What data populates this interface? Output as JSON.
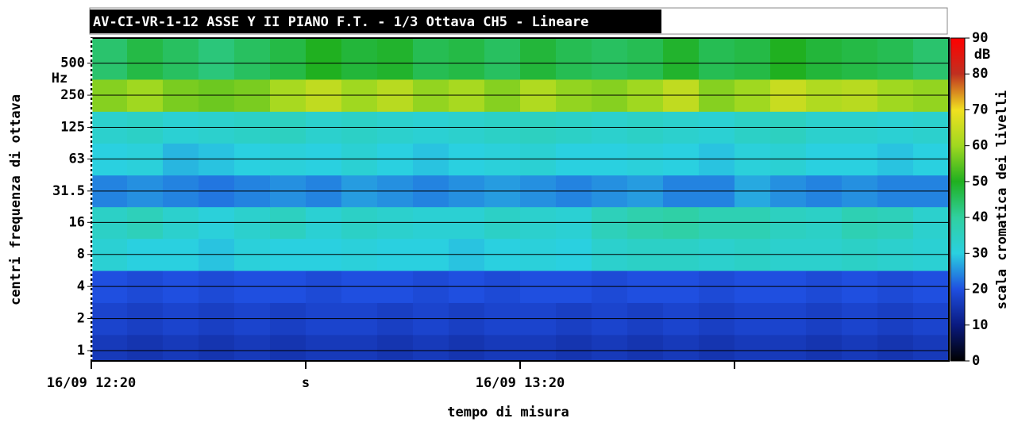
{
  "chart_data": {
    "type": "heatmap",
    "title": "AV-CI-VR-1-12 ASSE Y II PIANO F.T. - 1/3 Ottava CH5 - Lineare",
    "x_label": "tempo di misura",
    "y_label": "centri frequenza di ottava",
    "y_unit": "Hz",
    "colorbar_label": "scala cromatica dei livelli",
    "z_unit": "dB",
    "x": [
      "16/09 12:20",
      null,
      null,
      null,
      null,
      null,
      "s",
      null,
      null,
      null,
      null,
      null,
      "16/09 13:20",
      null,
      null,
      null,
      null,
      null,
      null,
      null,
      null,
      null,
      null,
      null
    ],
    "ylim": [
      0.8,
      860
    ],
    "yticks": [
      1,
      2,
      4,
      8,
      16,
      31.5,
      63,
      125,
      250,
      500
    ],
    "log_y": true,
    "grid": true,
    "zlim": [
      0,
      90
    ],
    "zticks": [
      0,
      10,
      20,
      30,
      40,
      50,
      60,
      70,
      80,
      90
    ],
    "colorscale": [
      [
        0,
        "#000000"
      ],
      [
        10,
        "#0a1a80"
      ],
      [
        20,
        "#1f4fe0"
      ],
      [
        30,
        "#2ad0e0"
      ],
      [
        40,
        "#30d0a0"
      ],
      [
        50,
        "#20b020"
      ],
      [
        60,
        "#a0d820"
      ],
      [
        70,
        "#f0e020"
      ],
      [
        80,
        "#c03020"
      ],
      [
        90,
        "#ff0000"
      ]
    ],
    "z": [
      [
        16,
        15,
        16,
        15,
        16,
        15,
        16,
        16,
        15,
        16,
        15,
        16,
        16,
        15,
        16,
        15,
        16,
        15,
        16,
        16,
        15,
        16,
        15,
        16
      ],
      [
        18,
        17,
        18,
        17,
        18,
        17,
        18,
        18,
        17,
        18,
        17,
        18,
        18,
        17,
        18,
        17,
        18,
        17,
        18,
        18,
        17,
        18,
        17,
        18
      ],
      [
        20,
        19,
        20,
        19,
        20,
        20,
        19,
        20,
        20,
        19,
        20,
        19,
        20,
        20,
        19,
        20,
        20,
        19,
        20,
        20,
        19,
        20,
        19,
        20
      ],
      [
        32,
        30,
        30,
        29,
        31,
        30,
        30,
        31,
        30,
        30,
        29,
        30,
        31,
        30,
        33,
        34,
        34,
        33,
        34,
        33,
        33,
        34,
        33,
        32
      ],
      [
        34,
        36,
        33,
        31,
        33,
        35,
        32,
        34,
        33,
        32,
        32,
        34,
        33,
        32,
        36,
        38,
        39,
        37,
        37,
        35,
        34,
        37,
        36,
        33
      ],
      [
        24,
        25,
        24,
        23,
        24,
        25,
        24,
        26,
        25,
        24,
        25,
        26,
        25,
        24,
        25,
        26,
        24,
        24,
        27,
        25,
        24,
        25,
        24,
        24
      ],
      [
        30,
        31,
        28,
        29,
        30,
        31,
        30,
        32,
        30,
        29,
        30,
        31,
        32,
        30,
        30,
        31,
        30,
        29,
        31,
        32,
        30,
        30,
        29,
        30
      ],
      [
        33,
        34,
        32,
        33,
        34,
        35,
        33,
        34,
        33,
        32,
        33,
        34,
        35,
        34,
        33,
        34,
        33,
        32,
        34,
        35,
        33,
        33,
        32,
        33
      ],
      [
        58,
        60,
        57,
        56,
        57,
        61,
        64,
        60,
        63,
        59,
        61,
        58,
        62,
        59,
        58,
        60,
        64,
        58,
        60,
        65,
        62,
        63,
        60,
        59
      ],
      [
        44,
        47,
        45,
        43,
        45,
        47,
        50,
        48,
        49,
        46,
        47,
        45,
        48,
        46,
        45,
        46,
        49,
        46,
        47,
        50,
        48,
        47,
        46,
        44
      ]
    ]
  }
}
